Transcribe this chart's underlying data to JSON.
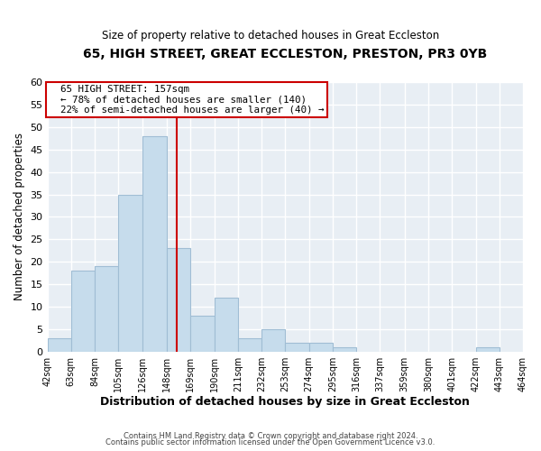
{
  "title": "65, HIGH STREET, GREAT ECCLESTON, PRESTON, PR3 0YB",
  "subtitle": "Size of property relative to detached houses in Great Eccleston",
  "xlabel": "Distribution of detached houses by size in Great Eccleston",
  "ylabel": "Number of detached properties",
  "bar_color": "#c6dcec",
  "bar_edge_color": "#a0bdd4",
  "bins": [
    42,
    63,
    84,
    105,
    126,
    148,
    169,
    190,
    211,
    232,
    253,
    274,
    295,
    316,
    337,
    359,
    380,
    401,
    422,
    443,
    464
  ],
  "counts": [
    3,
    18,
    19,
    35,
    48,
    23,
    8,
    12,
    3,
    5,
    2,
    2,
    1,
    0,
    0,
    0,
    0,
    0,
    1,
    0
  ],
  "tick_labels": [
    "42sqm",
    "63sqm",
    "84sqm",
    "105sqm",
    "126sqm",
    "148sqm",
    "169sqm",
    "190sqm",
    "211sqm",
    "232sqm",
    "253sqm",
    "274sqm",
    "295sqm",
    "316sqm",
    "337sqm",
    "359sqm",
    "380sqm",
    "401sqm",
    "422sqm",
    "443sqm",
    "464sqm"
  ],
  "ylim": [
    0,
    60
  ],
  "yticks": [
    0,
    5,
    10,
    15,
    20,
    25,
    30,
    35,
    40,
    45,
    50,
    55,
    60
  ],
  "vline_x": 157,
  "vline_color": "#cc0000",
  "annotation_title": "65 HIGH STREET: 157sqm",
  "annotation_line1": "← 78% of detached houses are smaller (140)",
  "annotation_line2": "22% of semi-detached houses are larger (40) →",
  "footer1": "Contains HM Land Registry data © Crown copyright and database right 2024.",
  "footer2": "Contains public sector information licensed under the Open Government Licence v3.0.",
  "background_color": "#e8eef4",
  "grid_color": "#ffffff"
}
